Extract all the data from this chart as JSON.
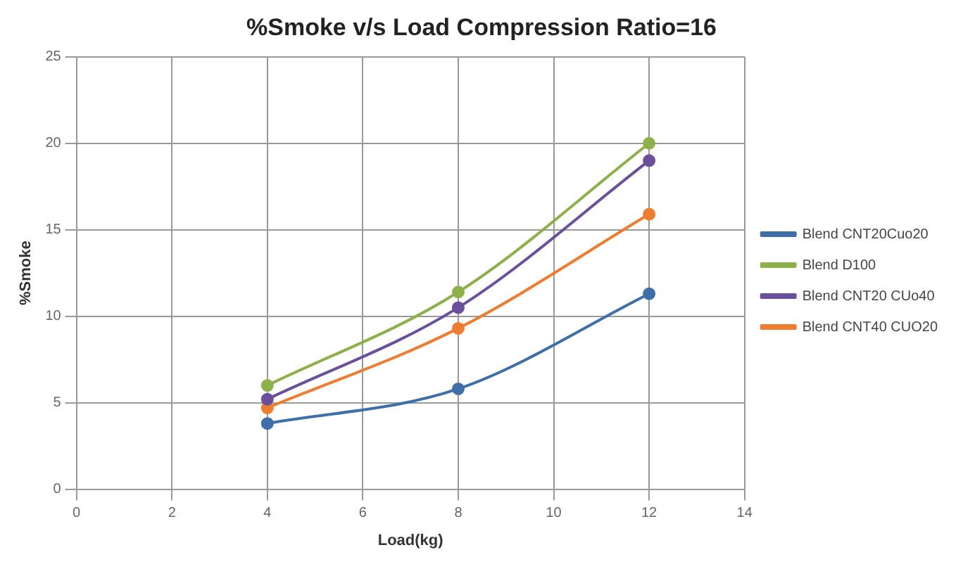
{
  "chart_data": {
    "type": "line",
    "title": "%Smoke v/s Load Compression Ratio=16",
    "xlabel": "Load(kg)",
    "ylabel": "%Smoke",
    "x": [
      4,
      8,
      12
    ],
    "series": [
      {
        "name": "Blend CNT20Cuo20",
        "color": "#3f6fa8",
        "values": [
          3.8,
          5.8,
          11.3
        ]
      },
      {
        "name": "Blend D100",
        "color": "#8db04a",
        "values": [
          6,
          11.4,
          20
        ]
      },
      {
        "name": "Blend CNT20 CUo40",
        "color": "#6a4f9a",
        "values": [
          5.2,
          10.5,
          19
        ]
      },
      {
        "name": "Blend CNT40 CUO20",
        "color": "#ed7d31",
        "values": [
          4.7,
          9.3,
          15.9
        ]
      }
    ],
    "xlim": [
      0,
      14
    ],
    "xticks": [
      0,
      2,
      4,
      6,
      8,
      10,
      12,
      14
    ],
    "ylim": [
      0,
      25
    ],
    "yticks": [
      0,
      5,
      10,
      15,
      20,
      25
    ],
    "grid": true,
    "legend": "right",
    "marker": "circle",
    "line_style": "solid"
  }
}
